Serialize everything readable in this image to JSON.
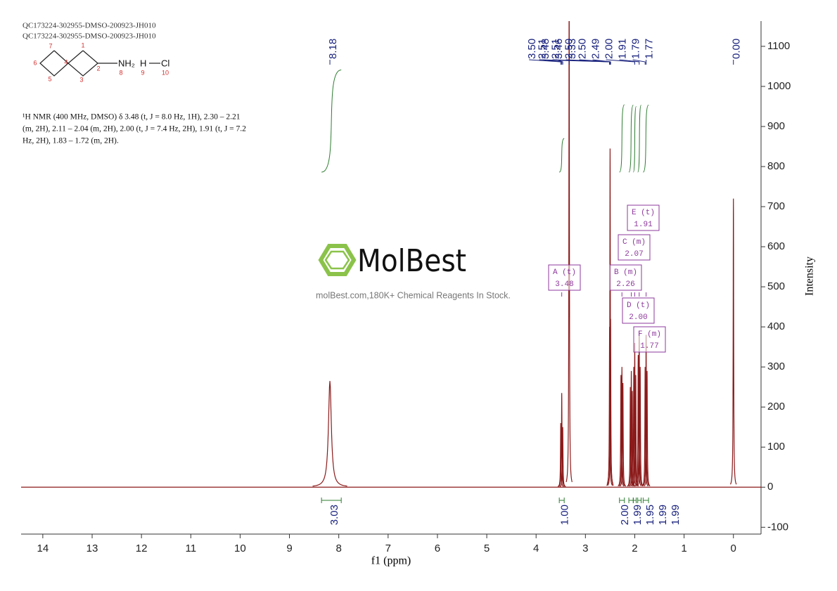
{
  "header": [
    "QC173224-302955-DMSO-200923-JH010",
    "QC173224-302955-DMSO-200923-JH010"
  ],
  "structure": {
    "atoms": [
      "NH₂",
      "H",
      "Cl"
    ],
    "atom_numbers": [
      1,
      2,
      3,
      4,
      5,
      6,
      7,
      8,
      9,
      10
    ]
  },
  "description": [
    "¹H NMR (400 MHz, DMSO) δ 3.48 (t, J = 8.0 Hz, 1H), 2.30 – 2.21",
    "(m, 2H), 2.11 – 2.04 (m, 2H), 2.00 (t, J = 7.4 Hz, 2H), 1.91 (t, J = 7.2",
    "Hz, 2H), 1.83 – 1.72 (m, 2H)."
  ],
  "watermark": {
    "brand": "MolBest",
    "tagline": "molBest.com,180K+ Chemical Reagents In Stock."
  },
  "chart_data": {
    "type": "spectrum",
    "xlabel": "f1 (ppm)",
    "ylabel": "Intensity",
    "xlim": [
      14.44,
      -0.56
    ],
    "xticks": [
      14,
      13,
      12,
      11,
      10,
      9,
      8,
      7,
      6,
      5,
      4,
      3,
      2,
      1,
      0
    ],
    "ylim": [
      -117,
      1163
    ],
    "yticks": [
      -100,
      0,
      100,
      200,
      300,
      400,
      500,
      600,
      700,
      800,
      900,
      1000,
      1100
    ],
    "color": "#8b1a1a",
    "x": [
      8.18,
      3.5,
      3.48,
      3.46,
      3.33,
      2.51,
      2.5,
      2.49,
      2.28,
      2.26,
      2.24,
      2.09,
      2.07,
      2.05,
      2.02,
      2.0,
      1.98,
      1.93,
      1.91,
      1.89,
      1.79,
      1.77,
      1.75,
      0
    ],
    "values": [
      265,
      160,
      235,
      150,
      1300,
      400,
      845,
      420,
      280,
      300,
      260,
      250,
      290,
      240,
      300,
      360,
      280,
      330,
      390,
      300,
      300,
      380,
      290,
      720
    ],
    "peak_labels": [
      8.18,
      {
        "value": 3.5,
        "label": "3.50"
      },
      3.48,
      3.46,
      3.33,
      2.51,
      2.51,
      {
        "value": 2.5,
        "label": "2.50"
      },
      {
        "value": 2.5,
        "label": "2.50"
      },
      2.49,
      {
        "value": 2,
        "label": "2.00"
      },
      1.91,
      1.79,
      1.77,
      {
        "value": 0,
        "label": "0.00"
      }
    ],
    "peak_label_color": "#1a237e",
    "integrals": {
      "values": [
        3.03,
        {
          "value": 1,
          "label": "1.00"
        },
        {
          "value": 2,
          "label": "2.00"
        },
        1.99,
        1.95,
        1.99,
        1.99
      ],
      "ranges": [
        [
          8.35,
          7.95
        ],
        [
          3.53,
          3.43
        ],
        [
          2.31,
          2.21
        ],
        [
          2.12,
          2.03
        ],
        [
          2.03,
          1.97
        ],
        [
          1.94,
          1.87
        ],
        [
          1.83,
          1.72
        ]
      ],
      "color": "#2e7d32"
    },
    "multiplets": [
      {
        "label": "A (t)",
        "shift": 3.48
      },
      {
        "label": "B (m)",
        "shift": 2.26
      },
      {
        "label": "C (m)",
        "shift": 2.07
      },
      {
        "label": "D (t)",
        "shift": {
          "value": 2,
          "label": "2.00"
        }
      },
      {
        "label": "E (t)",
        "shift": 1.91
      },
      {
        "label": "F (m)",
        "shift": 1.77
      }
    ],
    "multiplet_color": "#8e3a9d"
  }
}
